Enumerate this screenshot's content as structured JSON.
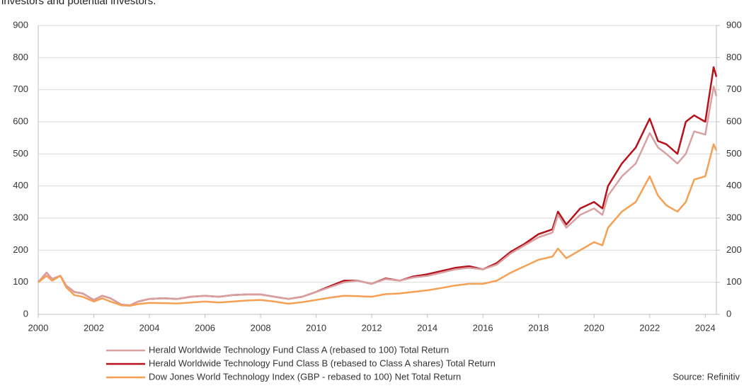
{
  "chart_data": {
    "type": "line",
    "subtitle": "investors and potential investors.",
    "source": "Source: Refinitiv",
    "x": [
      2000,
      2000.3,
      2000.5,
      2000.8,
      2001,
      2001.3,
      2001.6,
      2002,
      2002.3,
      2002.6,
      2003,
      2003.3,
      2003.6,
      2004,
      2004.5,
      2005,
      2005.5,
      2006,
      2006.5,
      2007,
      2007.5,
      2008,
      2008.5,
      2009,
      2009.5,
      2010,
      2010.5,
      2011,
      2011.5,
      2012,
      2012.5,
      2013,
      2013.5,
      2014,
      2014.5,
      2015,
      2015.5,
      2016,
      2016.5,
      2017,
      2017.5,
      2018,
      2018.5,
      2018.7,
      2019,
      2019.5,
      2020,
      2020.3,
      2020.5,
      2021,
      2021.5,
      2022,
      2022.3,
      2022.6,
      2023,
      2023.3,
      2023.6,
      2024,
      2024.3,
      2024.4
    ],
    "series": [
      {
        "name": "Herald Worldwide Technology Fund Class B (rebased to Class A shares) Total Return",
        "color": "#b5121b",
        "values": [
          100,
          130,
          110,
          120,
          90,
          70,
          65,
          45,
          58,
          50,
          30,
          28,
          40,
          48,
          50,
          48,
          55,
          58,
          55,
          60,
          62,
          62,
          55,
          48,
          55,
          70,
          88,
          105,
          105,
          95,
          112,
          105,
          118,
          125,
          135,
          145,
          150,
          140,
          160,
          195,
          220,
          250,
          265,
          320,
          280,
          330,
          350,
          330,
          400,
          470,
          520,
          610,
          540,
          530,
          500,
          600,
          620,
          600,
          770,
          740
        ]
      },
      {
        "name": "Herald Worldwide Technology Fund Class A (rebased to 100) Total Return",
        "color": "#d9a0a2",
        "values": [
          100,
          130,
          110,
          120,
          90,
          70,
          65,
          45,
          58,
          50,
          30,
          28,
          40,
          48,
          50,
          48,
          55,
          58,
          55,
          60,
          62,
          62,
          55,
          48,
          55,
          70,
          85,
          100,
          105,
          95,
          110,
          105,
          115,
          120,
          130,
          140,
          145,
          140,
          155,
          190,
          215,
          240,
          255,
          310,
          270,
          310,
          330,
          310,
          370,
          430,
          470,
          565,
          520,
          500,
          470,
          500,
          570,
          560,
          710,
          680
        ]
      },
      {
        "name": "Dow Jones World Technology Index (GBP - rebased to 100) Net Total Return",
        "color": "#f5a052",
        "values": [
          100,
          120,
          105,
          120,
          85,
          60,
          55,
          40,
          50,
          40,
          28,
          27,
          32,
          36,
          35,
          34,
          37,
          40,
          37,
          40,
          43,
          45,
          40,
          33,
          38,
          45,
          52,
          58,
          57,
          55,
          63,
          65,
          70,
          75,
          82,
          90,
          95,
          95,
          105,
          130,
          150,
          170,
          180,
          205,
          175,
          200,
          225,
          215,
          270,
          320,
          350,
          430,
          370,
          340,
          320,
          350,
          420,
          430,
          530,
          510
        ]
      }
    ],
    "legend_order": [
      1,
      0,
      2
    ],
    "xlim": [
      2000,
      2024.4
    ],
    "xticks": [
      2000,
      2002,
      2004,
      2006,
      2008,
      2010,
      2012,
      2014,
      2016,
      2018,
      2020,
      2022,
      2024
    ],
    "ylim": [
      0,
      900
    ],
    "yticks": [
      0,
      100,
      200,
      300,
      400,
      500,
      600,
      700,
      800,
      900
    ],
    "y2lim": [
      0,
      900
    ],
    "y2ticks": [
      0,
      100,
      200,
      300,
      400,
      500,
      600,
      700,
      800,
      900
    ],
    "grid": true
  }
}
